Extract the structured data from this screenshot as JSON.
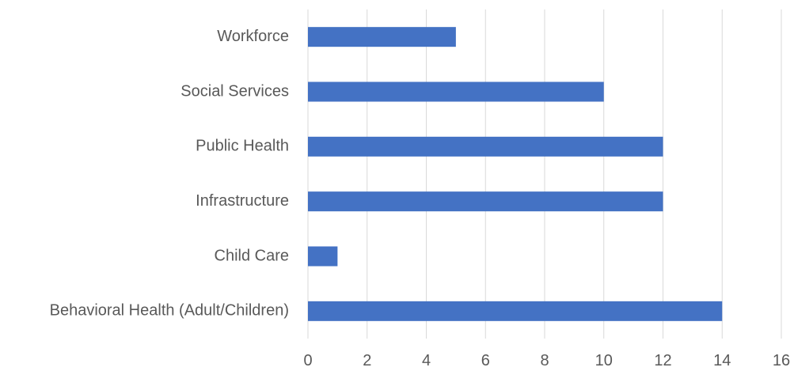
{
  "chart_data": {
    "type": "bar",
    "orientation": "horizontal",
    "title": "",
    "xlabel": "",
    "ylabel": "",
    "categories": [
      "Workforce",
      "Social Services",
      "Public Health",
      "Infrastructure",
      "Child Care",
      "Behavioral Health (Adult/Children)"
    ],
    "values": [
      5,
      10,
      12,
      12,
      1,
      14
    ],
    "xlim": [
      0,
      16
    ],
    "xticks": [
      0,
      2,
      4,
      6,
      8,
      10,
      12,
      14,
      16
    ],
    "grid": true,
    "legend": "none",
    "bar_color": "#4472c4",
    "gridline_color": "#d9d9d9",
    "label_color": "#595959"
  }
}
